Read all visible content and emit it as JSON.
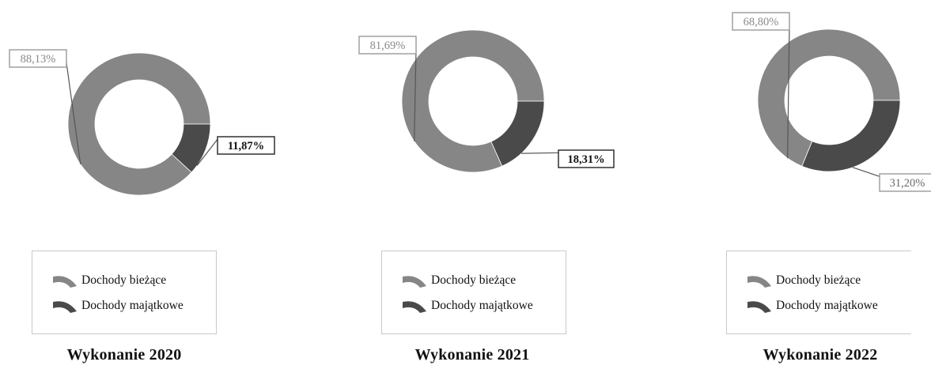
{
  "chart_data": [
    {
      "type": "pie",
      "title": "Wykonanie 2020",
      "categories": [
        "Dochody bieżące",
        "Dochody majątkowe"
      ],
      "values": [
        88.13,
        11.87
      ],
      "labels": [
        "88,13%",
        "11,87%"
      ],
      "colors": [
        "#868686",
        "#4a4a4a"
      ],
      "legend": "bottom"
    },
    {
      "type": "pie",
      "title": "Wykonanie 2021",
      "categories": [
        "Dochody bieżące",
        "Dochody majątkowe"
      ],
      "values": [
        81.69,
        18.31
      ],
      "labels": [
        "81,69%",
        "18,31%"
      ],
      "colors": [
        "#868686",
        "#4a4a4a"
      ],
      "legend": "bottom"
    },
    {
      "type": "pie",
      "title": "Wykonanie 2022",
      "categories": [
        "Dochody bieżące",
        "Dochody majątkowe"
      ],
      "values": [
        68.8,
        31.2
      ],
      "labels": [
        "68,80%",
        "31,20%"
      ],
      "colors": [
        "#868686",
        "#4a4a4a"
      ],
      "legend": "bottom"
    }
  ]
}
